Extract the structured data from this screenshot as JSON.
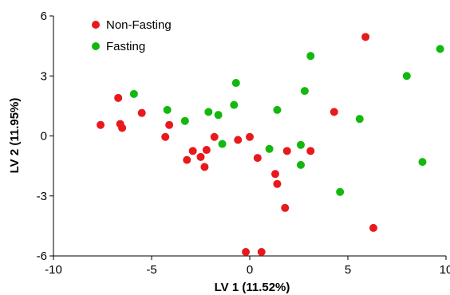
{
  "chart_data": {
    "type": "scatter",
    "title": "",
    "xlabel": "LV 1 (11.52%)",
    "ylabel": "LV 2 (11.95%)",
    "xlim": [
      -10,
      10
    ],
    "ylim": [
      -6,
      6
    ],
    "x_ticks": [
      -10,
      -5,
      0,
      5,
      10
    ],
    "y_ticks": [
      6,
      3,
      0,
      -3,
      -6
    ],
    "grid": false,
    "legend_position": "top-left",
    "series": [
      {
        "name": "Non-Fasting",
        "color": "#e8191c",
        "points": [
          [
            -7.6,
            0.55
          ],
          [
            -6.7,
            1.9
          ],
          [
            -6.6,
            0.6
          ],
          [
            -6.5,
            0.4
          ],
          [
            -5.5,
            1.15
          ],
          [
            -4.1,
            0.55
          ],
          [
            -4.3,
            -0.05
          ],
          [
            -3.2,
            -1.2
          ],
          [
            -2.9,
            -0.75
          ],
          [
            -2.5,
            -1.05
          ],
          [
            -2.3,
            -1.55
          ],
          [
            -2.2,
            -0.7
          ],
          [
            -1.8,
            -0.05
          ],
          [
            -0.6,
            -0.2
          ],
          [
            0.0,
            -0.05
          ],
          [
            0.4,
            -1.1
          ],
          [
            1.3,
            -1.9
          ],
          [
            1.4,
            -2.4
          ],
          [
            1.8,
            -3.6
          ],
          [
            1.9,
            -0.75
          ],
          [
            3.1,
            -0.75
          ],
          [
            4.3,
            1.2
          ],
          [
            5.9,
            4.95
          ],
          [
            6.3,
            -4.6
          ],
          [
            -0.2,
            -5.8
          ],
          [
            0.6,
            -5.8
          ]
        ]
      },
      {
        "name": "Fasting",
        "color": "#13b80f",
        "points": [
          [
            -5.9,
            2.1
          ],
          [
            -4.2,
            1.3
          ],
          [
            -3.3,
            0.75
          ],
          [
            -2.1,
            1.2
          ],
          [
            -1.6,
            1.05
          ],
          [
            -1.4,
            -0.4
          ],
          [
            -0.8,
            1.55
          ],
          [
            -0.7,
            2.65
          ],
          [
            1.0,
            -0.65
          ],
          [
            1.4,
            1.3
          ],
          [
            2.6,
            -0.45
          ],
          [
            2.6,
            -1.45
          ],
          [
            2.8,
            2.25
          ],
          [
            3.1,
            4.0
          ],
          [
            4.6,
            -2.8
          ],
          [
            5.6,
            0.85
          ],
          [
            8.0,
            3.0
          ],
          [
            8.8,
            -1.3
          ],
          [
            9.7,
            4.35
          ]
        ]
      }
    ]
  }
}
